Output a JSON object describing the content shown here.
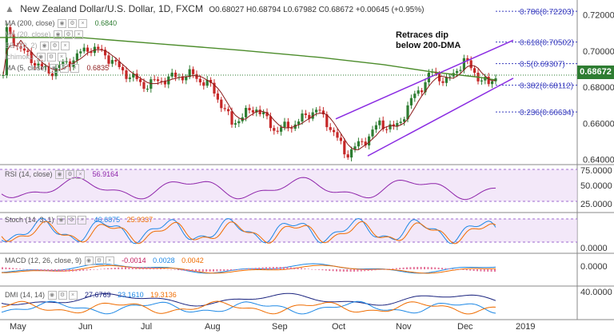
{
  "header": {
    "symbol": "New Zealand Dollar/U.S. Dollar, 1D, FXCM",
    "ohlc": "O0.68027  H0.68794  L0.67982  C0.68672  +0.00645 (+0.95%)"
  },
  "main_indicators": [
    {
      "label": "MA (200, close)",
      "value": "0.6840",
      "color": "#2e7d32"
    },
    {
      "label": "MA (20, close)",
      "value": ""
    },
    {
      "label": "BB (20, 2)",
      "value": ""
    },
    {
      "label": "Ichimoku",
      "value": ""
    },
    {
      "label": "MA (5, close)",
      "value": "0.6835",
      "color": "#8b1a1a"
    }
  ],
  "annotation": {
    "line1": "Retraces dip",
    "line2": "below 200-DMA"
  },
  "current_price": "0.68672",
  "price_axis": [
    "0.72000",
    "0.70000",
    "0.68000",
    "0.66000",
    "0.64000"
  ],
  "fib_levels": [
    {
      "label": "0.786(0.72203)",
      "value": 0.72203
    },
    {
      "label": "0.618(0.70502)",
      "value": 0.70502
    },
    {
      "label": "0.5(0.69307)",
      "value": 0.69307
    },
    {
      "label": "0.382(0.68112)",
      "value": 0.68112
    },
    {
      "label": "0.236(0.66634)",
      "value": 0.66634
    }
  ],
  "rsi": {
    "label": "RSI (14, close)",
    "value": "56.9164",
    "axis": [
      "75.0000",
      "50.0000",
      "25.0000"
    ]
  },
  "stoch": {
    "label": "Stoch (14, 3, 1)",
    "k": "46.6875",
    "d": "25.9337",
    "axis": [
      "0.0000"
    ]
  },
  "macd": {
    "label": "MACD (12, 26, close, 9)",
    "v1": "-0.0014",
    "v2": "0.0028",
    "v3": "0.0042",
    "axis": [
      "0.0000"
    ]
  },
  "dmi": {
    "label": "DMI (14, 14)",
    "v1": "27.6769",
    "v2": "23.1610",
    "v3": "19.3136",
    "axis": [
      "40.0000"
    ]
  },
  "time_axis": [
    "May",
    "Jun",
    "Jul",
    "Aug",
    "Sep",
    "Oct",
    "Nov",
    "Dec",
    "2019"
  ],
  "colors": {
    "up": "#2e7d32",
    "down": "#c62828",
    "ma200": "#4c8c2b",
    "ma5": "#8b1a1a",
    "channel": "#8a2be2",
    "fib": "#3b3fbf"
  }
}
